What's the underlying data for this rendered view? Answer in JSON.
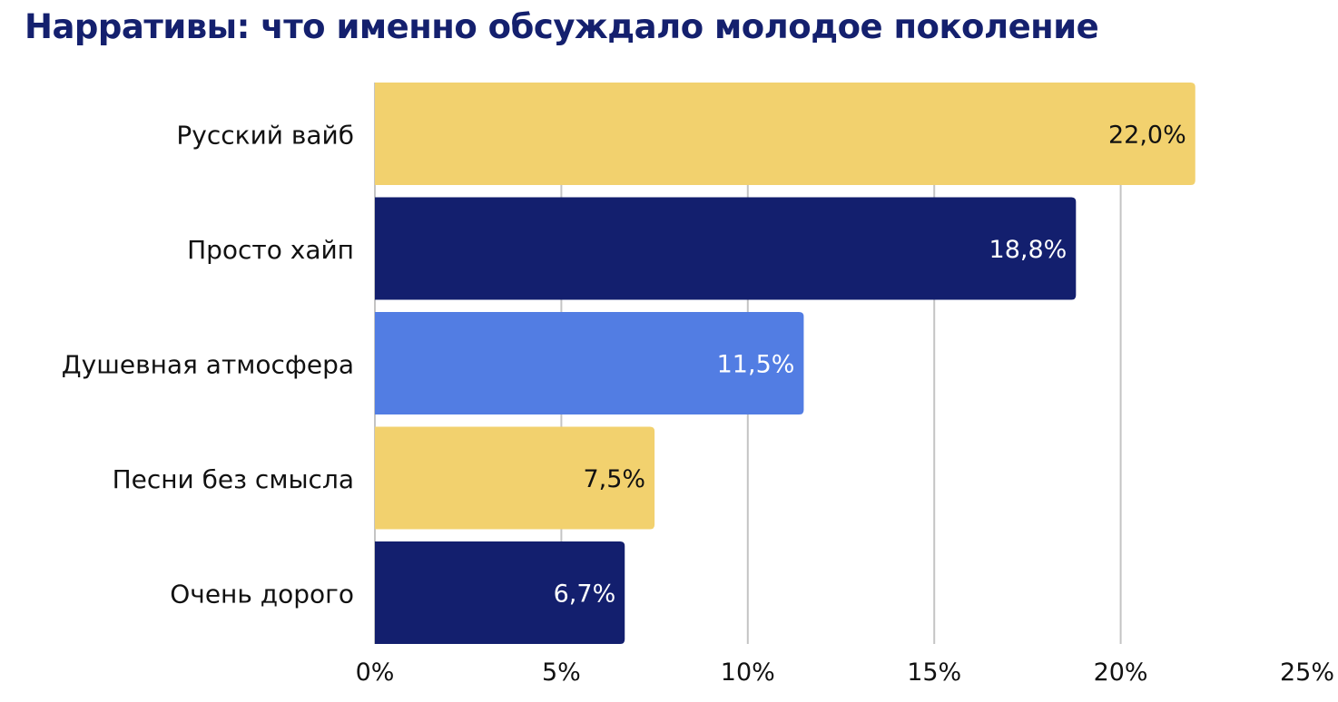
{
  "chart_data": {
    "type": "bar",
    "orientation": "horizontal",
    "title": "Нарративы: что именно обсуждало молодое поколение",
    "categories": [
      "Русский вайб",
      "Просто хайп",
      "Душевная атмосфера",
      "Песни без смысла",
      "Очень дорого"
    ],
    "values": [
      22.0,
      18.8,
      11.5,
      7.5,
      6.7
    ],
    "data_labels": [
      "22,0%",
      "18,8%",
      "11,5%",
      "7,5%",
      "6,7%"
    ],
    "bar_colors": [
      "#f2d16e",
      "#131f6e",
      "#527de3",
      "#f2d16e",
      "#131f6e"
    ],
    "label_colors": [
      "#111111",
      "#ffffff",
      "#ffffff",
      "#111111",
      "#ffffff"
    ],
    "xlim": [
      0,
      25
    ],
    "xticks": [
      0,
      5,
      10,
      15,
      20,
      25
    ],
    "xtick_labels": [
      "0%",
      "5%",
      "10%",
      "15%",
      "20%",
      "25%"
    ],
    "xlabel": "",
    "ylabel": "",
    "grid": "vertical",
    "legend": "none"
  }
}
